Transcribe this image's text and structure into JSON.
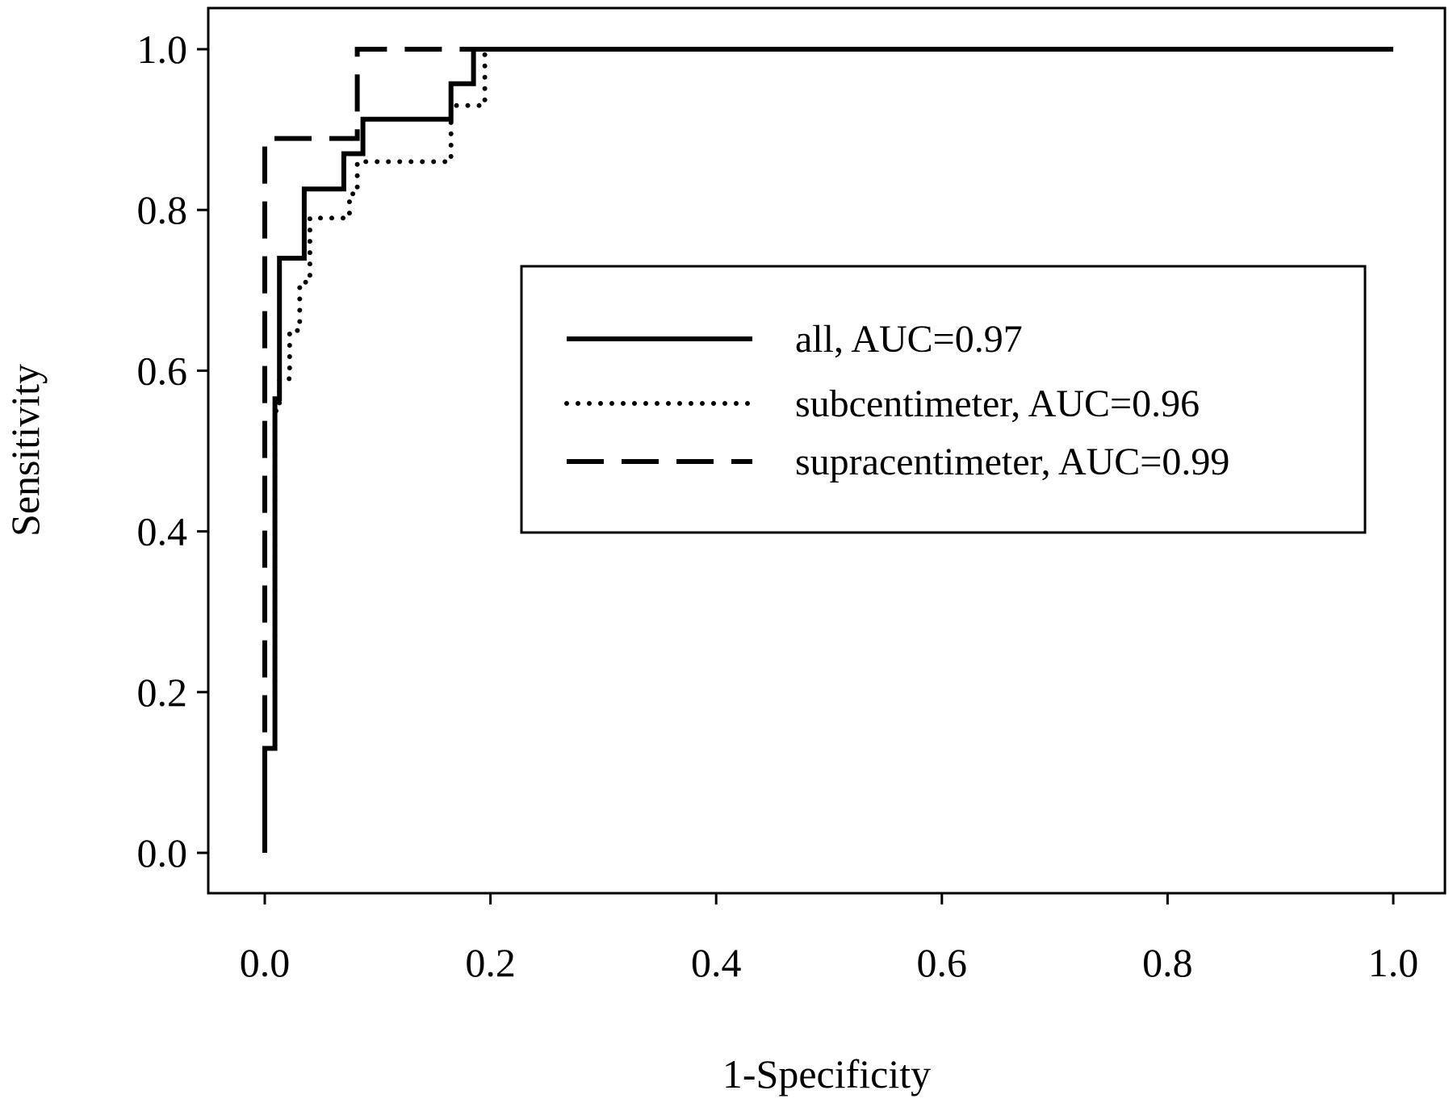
{
  "chart_data": {
    "type": "line",
    "title": "",
    "xlabel": "1-Specificity",
    "ylabel": "Sensitivity",
    "xlim": [
      0,
      1.05
    ],
    "ylim": [
      -0.1,
      1.1
    ],
    "xticks": [
      "0.0",
      "0.2",
      "0.4",
      "0.6",
      "0.8",
      "1.0"
    ],
    "yticks": [
      "0.0",
      "0.2",
      "0.4",
      "0.6",
      "0.8",
      "1.0"
    ],
    "grid": false,
    "legend_position": "center-right",
    "series": [
      {
        "name": "all, AUC=0.97",
        "style": "solid",
        "color": "#000000",
        "x": [
          0,
          0,
          0.009,
          0.009,
          0.013,
          0.013,
          0.018,
          0.018,
          0.035,
          0.035,
          0.07,
          0.07,
          0.087,
          0.087,
          0.165,
          0.165,
          0.185,
          0.185,
          1.0
        ],
        "y": [
          0,
          0.13,
          0.13,
          0.565,
          0.565,
          0.74,
          0.74,
          0.74,
          0.74,
          0.826,
          0.826,
          0.87,
          0.87,
          0.913,
          0.913,
          0.957,
          0.957,
          1.0,
          1.0
        ]
      },
      {
        "name": "subcentimeter, AUC=0.96",
        "style": "dotted",
        "color": "#000000",
        "x": [
          0.009,
          0.009,
          0.013,
          0.013,
          0.022,
          0.022,
          0.031,
          0.031,
          0.04,
          0.04,
          0.075,
          0.075,
          0.082,
          0.082,
          0.165,
          0.165,
          0.195,
          0.195,
          1.0
        ],
        "y": [
          0.2,
          0.55,
          0.55,
          0.59,
          0.59,
          0.65,
          0.65,
          0.71,
          0.71,
          0.79,
          0.79,
          0.82,
          0.82,
          0.86,
          0.86,
          0.93,
          0.93,
          1.0,
          1.0
        ]
      },
      {
        "name": "supracentimeter, AUC=0.99",
        "style": "dashed",
        "color": "#000000",
        "x": [
          0,
          0,
          0.082,
          0.082,
          1.0
        ],
        "y": [
          0.15,
          0.889,
          0.889,
          1.0,
          1.0
        ]
      }
    ]
  }
}
